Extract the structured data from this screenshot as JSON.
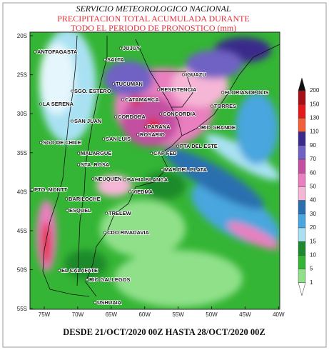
{
  "header": {
    "agency": "SERVICIO METEOROLOGICO NACIONAL",
    "title_line1": "PRECIPITACION TOTAL ACUMULADA DURANTE",
    "title_line2": "TODO EL PERIODO DE PRONOSTICO (mm)"
  },
  "map": {
    "lat_labels": [
      "20S",
      "25S",
      "30S",
      "35S",
      "40S",
      "45S",
      "50S",
      "55S"
    ],
    "lon_labels": [
      "75W",
      "70W",
      "65W",
      "60W",
      "55W",
      "50W",
      "45W",
      "40W"
    ],
    "places": [
      {
        "label": "ANTOFAGASTA"
      },
      {
        "label": "JUJUY"
      },
      {
        "label": "SALTA"
      },
      {
        "label": "TUCUMAN"
      },
      {
        "label": "SGO. ESTERO"
      },
      {
        "label": "CATAMARCA"
      },
      {
        "label": "LA SERENA"
      },
      {
        "label": "CORDOBA"
      },
      {
        "label": "SAN JUAN"
      },
      {
        "label": "SAN LUIS"
      },
      {
        "label": "SGO DE CHILE"
      },
      {
        "label": "MALARGUE"
      },
      {
        "label": "STA. ROSA"
      },
      {
        "label": "NEUQUEN"
      },
      {
        "label": "PTO. MONTT"
      },
      {
        "label": "BARILOCHE"
      },
      {
        "label": "ESQUEL"
      },
      {
        "label": "TRELEW"
      },
      {
        "label": "CDO RIVADAVIA"
      },
      {
        "label": "EL CALAFATE"
      },
      {
        "label": "RIO GALLEGOS"
      },
      {
        "label": "USHUAIA"
      },
      {
        "label": "IGUAZU"
      },
      {
        "label": "RESISTENCIA"
      },
      {
        "label": "CONCORDIA"
      },
      {
        "label": "PARANA"
      },
      {
        "label": "ROSARIO"
      },
      {
        "label": "CAP FED"
      },
      {
        "label": "PTA DEL ESTE"
      },
      {
        "label": "MAR DEL PLATA"
      },
      {
        "label": "BAHIA BLANCA"
      },
      {
        "label": "VIEDMA"
      },
      {
        "label": "FLORIANOPOLIS"
      },
      {
        "label": "TORRES"
      },
      {
        "label": "RIO GRANDE"
      }
    ]
  },
  "colorbar": {
    "levels": [
      200,
      150,
      130,
      110,
      90,
      70,
      60,
      50,
      40,
      30,
      20,
      15,
      10,
      5,
      1
    ],
    "band_colors": [
      "#111111",
      "#a50f15",
      "#e31a1c",
      "#f2603a",
      "#3a2a8c",
      "#7062c4",
      "#c24fa0",
      "#e97fbf",
      "#f6b6d6",
      "#2a6fb0",
      "#4aa6de",
      "#a9e1f3",
      "#1c8a2c",
      "#35b535",
      "#90e08a",
      "#ffffff"
    ]
  },
  "footer": "DESDE 21/OCT/2020 00Z HASTA 28/OCT/2020 00Z"
}
